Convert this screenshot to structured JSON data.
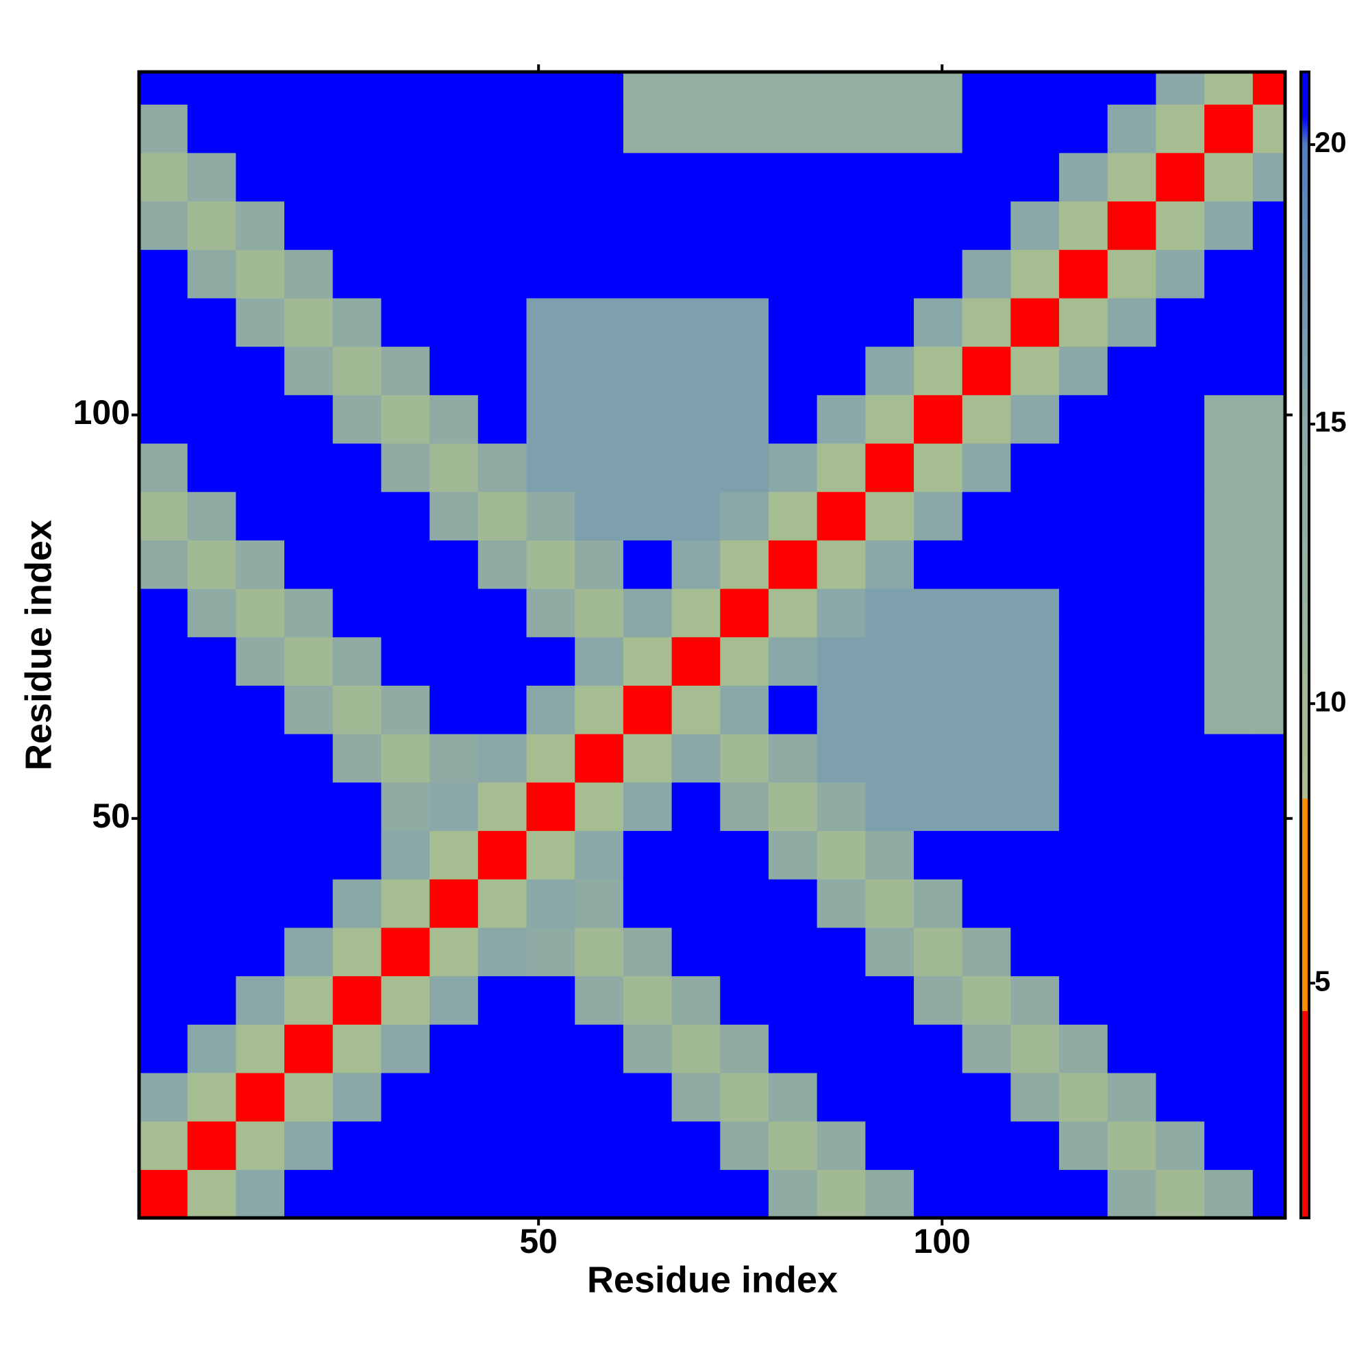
{
  "chart_data": {
    "type": "heatmap",
    "xlabel": "Residue index",
    "ylabel": "Residue index",
    "x_bins": [
      0.5,
      6.5,
      12.5,
      18.5,
      24.5,
      30.5,
      36.5,
      42.5,
      48.5,
      54.5,
      60.5,
      66.5,
      72.5,
      78.5,
      84.5,
      90.5,
      96.5,
      102.5,
      108.5,
      114.5,
      120.5,
      126.5,
      132.5,
      138.5,
      142.5
    ],
    "y_bins": [
      0.5,
      6.5,
      12.5,
      18.5,
      24.5,
      30.5,
      36.5,
      42.5,
      48.5,
      54.5,
      60.5,
      66.5,
      72.5,
      78.5,
      84.5,
      90.5,
      96.5,
      102.5,
      108.5,
      114.5,
      120.5,
      126.5,
      132.5,
      138.5,
      142.5
    ],
    "xlim": [
      0.5,
      142.5
    ],
    "ylim": [
      0.5,
      142.5
    ],
    "xticks": [
      50,
      100
    ],
    "yticks": [
      50,
      100
    ],
    "clim": [
      0.8,
      21.3
    ],
    "cticks": [
      5,
      10,
      15,
      20
    ],
    "color_stops": [
      [
        0.8,
        "#ff0000"
      ],
      [
        4.5,
        "#ff0000"
      ],
      [
        4.5,
        "#ff8c00"
      ],
      [
        8.3,
        "#ff8c00"
      ],
      [
        8.3,
        "#a9bf8f"
      ],
      [
        15,
        "#8aa8a8"
      ],
      [
        20,
        "#4f7fbf"
      ],
      [
        20.5,
        "#0000ff"
      ],
      [
        21.3,
        "#0000ff"
      ]
    ],
    "values": [
      [
        4,
        9,
        15,
        21,
        21,
        21,
        21,
        21,
        21,
        21,
        21,
        21,
        21,
        14,
        10,
        14,
        21,
        21,
        21,
        21,
        14,
        10,
        14,
        21
      ],
      [
        9,
        4,
        9,
        15,
        21,
        21,
        21,
        21,
        21,
        21,
        21,
        21,
        14,
        10,
        14,
        21,
        21,
        21,
        21,
        14,
        10,
        14,
        21,
        21
      ],
      [
        15,
        9,
        4,
        9,
        15,
        21,
        21,
        21,
        21,
        21,
        21,
        14,
        10,
        14,
        21,
        21,
        21,
        21,
        14,
        10,
        14,
        21,
        21,
        21
      ],
      [
        21,
        15,
        9,
        4,
        9,
        15,
        21,
        21,
        21,
        21,
        14,
        10,
        14,
        21,
        21,
        21,
        21,
        14,
        10,
        14,
        21,
        21,
        21,
        21
      ],
      [
        21,
        21,
        15,
        9,
        4,
        9,
        15,
        21,
        21,
        14,
        10,
        14,
        21,
        21,
        21,
        21,
        14,
        10,
        14,
        21,
        21,
        21,
        21,
        21
      ],
      [
        21,
        21,
        21,
        15,
        9,
        4,
        9,
        15,
        14,
        10,
        14,
        21,
        21,
        21,
        21,
        14,
        10,
        14,
        21,
        21,
        21,
        21,
        21,
        21
      ],
      [
        21,
        21,
        21,
        21,
        15,
        9,
        4,
        9,
        15,
        14,
        21,
        21,
        21,
        21,
        14,
        10,
        14,
        21,
        21,
        21,
        21,
        21,
        21,
        21
      ],
      [
        21,
        21,
        21,
        21,
        21,
        15,
        9,
        4,
        9,
        15,
        21,
        21,
        21,
        14,
        10,
        14,
        21,
        21,
        21,
        21,
        21,
        21,
        21,
        21
      ],
      [
        21,
        21,
        21,
        21,
        21,
        14,
        15,
        9,
        4,
        9,
        15,
        21,
        14,
        10,
        14,
        16,
        16,
        16,
        16,
        21,
        21,
        21,
        21,
        21
      ],
      [
        21,
        21,
        21,
        21,
        14,
        10,
        14,
        15,
        9,
        4,
        9,
        15,
        10,
        14,
        16,
        16,
        16,
        16,
        16,
        21,
        21,
        21,
        21,
        21
      ],
      [
        21,
        21,
        21,
        14,
        10,
        14,
        21,
        21,
        15,
        9,
        4,
        9,
        15,
        21,
        16,
        16,
        16,
        16,
        16,
        21,
        21,
        21,
        13,
        13
      ],
      [
        21,
        21,
        14,
        10,
        14,
        21,
        21,
        21,
        21,
        15,
        9,
        4,
        9,
        15,
        16,
        16,
        16,
        16,
        16,
        21,
        21,
        21,
        13,
        13
      ],
      [
        21,
        14,
        10,
        14,
        21,
        21,
        21,
        21,
        14,
        10,
        15,
        9,
        4,
        9,
        15,
        16,
        16,
        16,
        16,
        21,
        21,
        21,
        13,
        13
      ],
      [
        14,
        10,
        14,
        21,
        21,
        21,
        21,
        14,
        10,
        14,
        21,
        15,
        9,
        4,
        9,
        15,
        21,
        21,
        21,
        21,
        21,
        21,
        13,
        13
      ],
      [
        10,
        14,
        21,
        21,
        21,
        21,
        14,
        10,
        14,
        16,
        16,
        16,
        15,
        9,
        4,
        9,
        15,
        21,
        21,
        21,
        21,
        21,
        13,
        13
      ],
      [
        14,
        21,
        21,
        21,
        21,
        14,
        10,
        14,
        16,
        16,
        16,
        16,
        16,
        15,
        9,
        4,
        9,
        15,
        21,
        21,
        21,
        21,
        13,
        13
      ],
      [
        21,
        21,
        21,
        21,
        14,
        10,
        14,
        21,
        16,
        16,
        16,
        16,
        16,
        21,
        15,
        9,
        4,
        9,
        15,
        21,
        21,
        21,
        13,
        13
      ],
      [
        21,
        21,
        21,
        14,
        10,
        14,
        21,
        21,
        16,
        16,
        16,
        16,
        16,
        21,
        21,
        15,
        9,
        4,
        9,
        15,
        21,
        21,
        21,
        21
      ],
      [
        21,
        21,
        14,
        10,
        14,
        21,
        21,
        21,
        16,
        16,
        16,
        16,
        16,
        21,
        21,
        21,
        15,
        9,
        4,
        9,
        15,
        21,
        21,
        21
      ],
      [
        21,
        14,
        10,
        14,
        21,
        21,
        21,
        21,
        21,
        21,
        21,
        21,
        21,
        21,
        21,
        21,
        21,
        15,
        9,
        4,
        9,
        15,
        21,
        21
      ],
      [
        14,
        10,
        14,
        21,
        21,
        21,
        21,
        21,
        21,
        21,
        21,
        21,
        21,
        21,
        21,
        21,
        21,
        21,
        15,
        9,
        4,
        9,
        15,
        21
      ],
      [
        10,
        14,
        21,
        21,
        21,
        21,
        21,
        21,
        21,
        21,
        21,
        21,
        21,
        21,
        21,
        21,
        21,
        21,
        21,
        15,
        9,
        4,
        9,
        15
      ],
      [
        14,
        21,
        21,
        21,
        21,
        21,
        21,
        21,
        21,
        21,
        13,
        13,
        13,
        13,
        13,
        13,
        13,
        21,
        21,
        21,
        15,
        9,
        4,
        9
      ],
      [
        21,
        21,
        21,
        21,
        21,
        21,
        21,
        21,
        21,
        21,
        13,
        13,
        13,
        13,
        13,
        13,
        13,
        21,
        21,
        21,
        21,
        15,
        9,
        4
      ]
    ]
  }
}
